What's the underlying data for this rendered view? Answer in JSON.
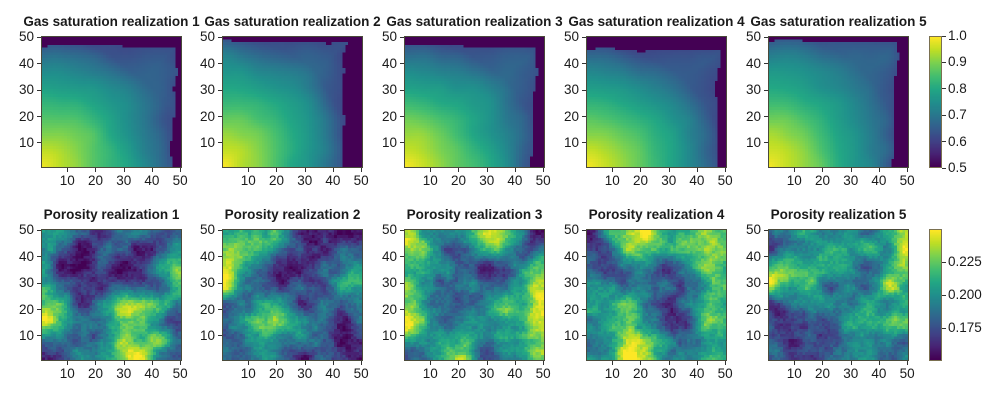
{
  "chart_data": [
    {
      "type": "heatmap",
      "row": "gas_saturation",
      "panels": [
        {
          "title": "Gas saturation realization 1",
          "front_x": 47,
          "front_top_y": 46,
          "seed": 11
        },
        {
          "title": "Gas saturation realization 2",
          "front_x": 44,
          "front_top_y": 48,
          "seed": 12
        },
        {
          "title": "Gas saturation realization 3",
          "front_x": 46,
          "front_top_y": 46,
          "seed": 13
        },
        {
          "title": "Gas saturation realization 4",
          "front_x": 47,
          "front_top_y": 45,
          "seed": 14
        },
        {
          "title": "Gas saturation realization 5",
          "front_x": 45,
          "front_top_y": 48,
          "seed": 15
        }
      ],
      "grid_size": [
        50,
        50
      ],
      "xlim": [
        1,
        50
      ],
      "ylim": [
        1,
        50
      ],
      "xticks": [
        10,
        20,
        30,
        40,
        50
      ],
      "yticks": [
        10,
        20,
        30,
        40,
        50
      ],
      "colormap": "viridis",
      "colorbar": {
        "range": [
          0.5,
          1.0
        ],
        "ticks": [
          "0.5",
          "0.6",
          "0.7",
          "0.8",
          "0.9",
          "1.0"
        ],
        "tick_values": [
          0.5,
          0.6,
          0.7,
          0.8,
          0.9,
          1.0
        ]
      },
      "description": "Saturation highest (~1.0) at bottom-left injection corner, decreasing toward ~0.7 near front; region beyond front (right edge and top strip) ~0.5"
    },
    {
      "type": "heatmap",
      "row": "porosity",
      "panels": [
        {
          "title": "Porosity realization 1",
          "seed": 101
        },
        {
          "title": "Porosity realization 2",
          "seed": 202
        },
        {
          "title": "Porosity realization 3",
          "seed": 303
        },
        {
          "title": "Porosity realization 4",
          "seed": 404
        },
        {
          "title": "Porosity realization 5",
          "seed": 505
        }
      ],
      "grid_size": [
        50,
        50
      ],
      "xlim": [
        1,
        50
      ],
      "ylim": [
        1,
        50
      ],
      "xticks": [
        10,
        20,
        30,
        40,
        50
      ],
      "yticks": [
        10,
        20,
        30,
        40,
        50
      ],
      "colormap": "viridis",
      "colorbar": {
        "range": [
          0.15,
          0.25
        ],
        "ticks": [
          "0.175",
          "0.200",
          "0.225"
        ],
        "tick_values": [
          0.175,
          0.2,
          0.225
        ]
      },
      "description": "Spatially correlated random porosity fields ranging ~0.15 to ~0.25"
    }
  ]
}
